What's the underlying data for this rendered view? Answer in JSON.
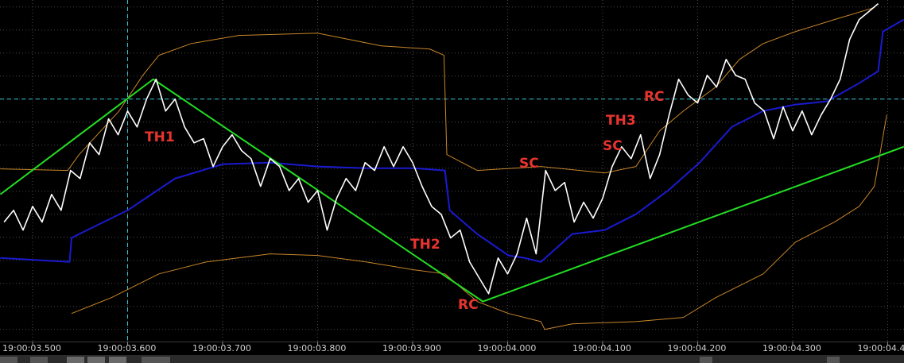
{
  "chart_data": {
    "type": "line",
    "xlim": [
      3.4657,
      4.4172
    ],
    "ylim": [
      0.5,
      15.3
    ],
    "xticks": [
      {
        "value": 3.5,
        "label": "19:00:03.500"
      },
      {
        "value": 3.6,
        "label": "19:00:03.600"
      },
      {
        "value": 3.7,
        "label": "19:00:03.700"
      },
      {
        "value": 3.8,
        "label": "19:00:03.800"
      },
      {
        "value": 3.9,
        "label": "19:00:03.900"
      },
      {
        "value": 4.0,
        "label": "19:00:04.000"
      },
      {
        "value": 4.1,
        "label": "19:00:04.100"
      },
      {
        "value": 4.2,
        "label": "19:00:04.200"
      },
      {
        "value": 4.3,
        "label": "19:00:04.300"
      },
      {
        "value": 4.4,
        "label": "19:00:04.4"
      }
    ],
    "yticks": [
      1,
      2,
      3,
      4,
      5,
      6,
      7,
      8,
      9,
      10,
      11,
      12,
      13,
      14,
      15
    ],
    "grid": true,
    "crosshair": {
      "x": 3.6,
      "y": 11,
      "color": "#2fc6d6"
    },
    "series": [
      {
        "color": "#c8862a",
        "x": [
          3.466,
          3.537,
          3.549,
          3.591,
          3.616,
          3.633,
          3.667,
          3.717,
          3.8,
          3.867,
          3.918,
          3.933,
          3.936,
          3.968,
          4.035,
          4.102,
          4.135,
          4.16,
          4.185,
          4.219,
          4.244,
          4.269,
          4.303,
          4.344,
          4.386
        ],
        "values": [
          7.97,
          7.9,
          8.59,
          10.48,
          12.03,
          12.9,
          13.41,
          13.76,
          13.86,
          13.31,
          13.17,
          12.9,
          8.59,
          7.9,
          8.07,
          7.79,
          8.07,
          9.62,
          10.48,
          11.52,
          12.72,
          13.41,
          13.93,
          14.45,
          14.97
        ]
      },
      {
        "color": "#c8862a",
        "x": [
          3.541,
          3.583,
          3.633,
          3.683,
          3.75,
          3.8,
          3.851,
          3.901,
          3.934,
          3.968,
          4.001,
          4.035,
          4.039,
          4.068,
          4.135,
          4.185,
          4.219,
          4.269,
          4.303,
          4.344,
          4.37,
          4.386,
          4.399
        ],
        "values": [
          1.69,
          2.38,
          3.41,
          3.93,
          4.28,
          4.21,
          3.93,
          3.59,
          3.41,
          2.21,
          1.69,
          1.34,
          1.0,
          1.24,
          1.34,
          1.52,
          2.38,
          3.41,
          4.79,
          5.66,
          6.34,
          7.21,
          10.31
        ]
      },
      {
        "color": "#1a1ad0",
        "x": [
          3.466,
          3.539,
          3.541,
          3.549,
          3.6,
          3.65,
          3.7,
          3.75,
          3.8,
          3.851,
          3.901,
          3.934,
          3.939,
          3.968,
          4.001,
          4.018,
          4.035,
          4.068,
          4.102,
          4.135,
          4.169,
          4.202,
          4.236,
          4.269,
          4.303,
          4.336,
          4.37,
          4.39,
          4.395,
          4.417
        ],
        "values": [
          4.1,
          3.93,
          4.97,
          5.14,
          6.17,
          7.55,
          8.17,
          8.24,
          8.07,
          8.0,
          8.0,
          7.9,
          6.17,
          5.14,
          4.21,
          4.1,
          3.93,
          5.14,
          5.31,
          6.0,
          7.03,
          8.24,
          9.79,
          10.48,
          10.76,
          10.9,
          11.69,
          12.21,
          13.93,
          14.45
        ]
      },
      {
        "color": "#22dd22",
        "x": [
          3.466,
          3.627,
          3.974,
          4.417
        ],
        "values": [
          6.86,
          11.86,
          2.21,
          8.93
        ]
      },
      {
        "color": "#ffffff",
        "x": [
          3.47,
          3.48,
          3.49,
          3.5,
          3.51,
          3.52,
          3.53,
          3.54,
          3.55,
          3.56,
          3.57,
          3.58,
          3.59,
          3.6,
          3.61,
          3.62,
          3.63,
          3.64,
          3.65,
          3.66,
          3.67,
          3.68,
          3.69,
          3.7,
          3.71,
          3.72,
          3.73,
          3.74,
          3.75,
          3.76,
          3.77,
          3.78,
          3.79,
          3.8,
          3.81,
          3.82,
          3.83,
          3.84,
          3.85,
          3.86,
          3.87,
          3.88,
          3.89,
          3.9,
          3.91,
          3.92,
          3.93,
          3.94,
          3.95,
          3.96,
          3.97,
          3.98,
          3.99,
          4.0,
          4.01,
          4.02,
          4.03,
          4.04,
          4.05,
          4.06,
          4.07,
          4.08,
          4.09,
          4.1,
          4.11,
          4.12,
          4.13,
          4.14,
          4.15,
          4.16,
          4.17,
          4.18,
          4.19,
          4.2,
          4.21,
          4.22,
          4.23,
          4.24,
          4.25,
          4.26,
          4.27,
          4.28,
          4.29,
          4.3,
          4.31,
          4.32,
          4.33,
          4.34,
          4.35,
          4.36,
          4.37,
          4.38,
          4.39
        ],
        "values": [
          5.66,
          6.17,
          5.31,
          6.34,
          5.66,
          6.86,
          6.17,
          7.9,
          7.55,
          9.1,
          8.59,
          10.14,
          9.45,
          10.48,
          9.79,
          11.0,
          11.86,
          10.48,
          11.0,
          9.79,
          9.1,
          9.28,
          8.07,
          8.93,
          9.45,
          8.76,
          8.41,
          7.21,
          8.41,
          8.07,
          7.03,
          7.55,
          6.52,
          7.03,
          5.31,
          6.69,
          7.55,
          7.03,
          8.24,
          7.9,
          8.93,
          8.07,
          8.93,
          8.24,
          7.21,
          6.34,
          6.0,
          4.97,
          5.31,
          3.93,
          3.24,
          2.55,
          4.1,
          3.41,
          4.28,
          5.83,
          4.28,
          7.9,
          7.03,
          7.38,
          5.66,
          6.52,
          5.83,
          6.69,
          8.07,
          8.93,
          8.41,
          9.45,
          7.55,
          8.59,
          10.31,
          11.86,
          11.17,
          10.83,
          12.03,
          11.52,
          12.72,
          12.03,
          11.86,
          10.83,
          10.48,
          9.28,
          10.66,
          9.62,
          10.48,
          9.45,
          10.31,
          11.0,
          11.86,
          13.59,
          14.45,
          14.79,
          15.14
        ]
      }
    ],
    "annotations": [
      "TH1",
      "TH2",
      "RC",
      "SC",
      "TH3",
      "SC",
      "RC"
    ],
    "annotation_color": "#e8342f"
  }
}
